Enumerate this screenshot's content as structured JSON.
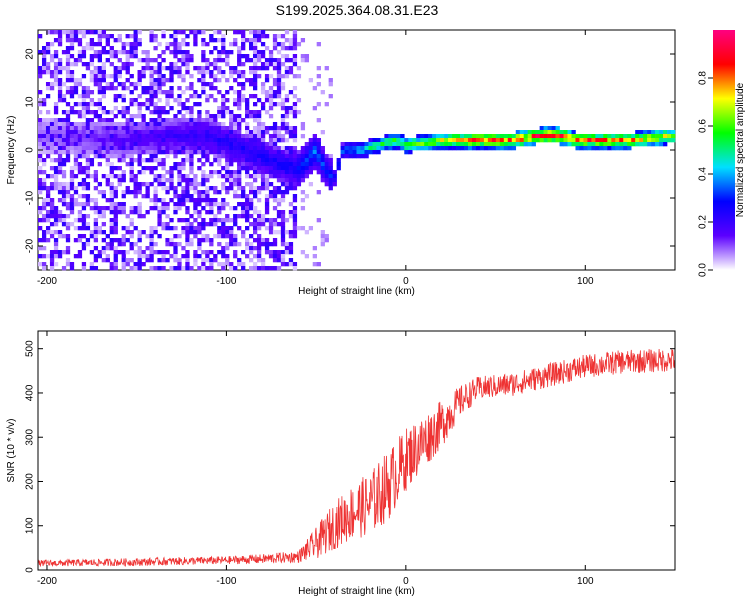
{
  "title": "S199.2025.364.08.31.E23",
  "chart_data": [
    {
      "type": "heatmap",
      "xlabel": "Height of straight line (km)",
      "ylabel": "Frequency (Hz)",
      "xlim": [
        -205,
        150
      ],
      "ylim": [
        -25,
        25
      ],
      "xticks": [
        -200,
        -100,
        0,
        100
      ],
      "yticks": [
        -20,
        -10,
        0,
        10,
        20
      ],
      "colorbar": {
        "label": "Normalized spectral amplitude",
        "range": [
          0,
          1
        ],
        "ticks": [
          "0.0",
          "0.2",
          "0.4",
          "0.6",
          "0.8"
        ],
        "tick_values": [
          0,
          0.2,
          0.4,
          0.6,
          0.8
        ],
        "colors": [
          "#ffffff",
          "#5b00ff",
          "#0000ff",
          "#00e0ff",
          "#00ff00",
          "#ffff00",
          "#ff0000",
          "#ff0080"
        ]
      },
      "noise_region": {
        "x_range": [
          -205,
          -60
        ],
        "y_range": [
          -25,
          25
        ],
        "level": 0.1
      },
      "ridge": {
        "x": [
          -200,
          -160,
          -130,
          -110,
          -90,
          -70,
          -60,
          -50,
          -45,
          -40,
          -35,
          -25,
          -15,
          -5,
          0,
          20,
          40,
          60,
          75,
          85,
          95,
          110,
          125,
          150
        ],
        "freq": [
          3,
          2,
          3,
          3,
          0,
          -3,
          -4,
          0,
          -4,
          -6,
          0,
          0,
          1,
          2,
          1,
          2,
          2,
          2,
          3,
          3,
          2,
          2,
          2,
          3
        ],
        "amp": [
          0.1,
          0.15,
          0.2,
          0.22,
          0.25,
          0.25,
          0.3,
          0.35,
          0.3,
          0.3,
          0.35,
          0.45,
          0.55,
          0.6,
          0.6,
          0.7,
          0.82,
          0.8,
          0.85,
          0.9,
          0.8,
          0.82,
          0.75,
          0.7
        ]
      }
    },
    {
      "type": "line",
      "xlabel": "Height of straight line (km)",
      "ylabel": "SNR (10 * v/v)",
      "xlim": [
        -205,
        150
      ],
      "ylim": [
        0,
        540
      ],
      "xticks": [
        -200,
        -100,
        0,
        100
      ],
      "yticks": [
        0,
        100,
        200,
        300,
        400,
        500
      ],
      "series": [
        {
          "name": "SNR",
          "color": "#ee3333",
          "x": [
            -205,
            -150,
            -100,
            -80,
            -60,
            -50,
            -40,
            -30,
            -20,
            -10,
            0,
            10,
            20,
            30,
            40,
            60,
            80,
            100,
            120,
            150
          ],
          "values": [
            15,
            18,
            22,
            25,
            30,
            60,
            100,
            130,
            150,
            190,
            250,
            290,
            330,
            380,
            410,
            420,
            440,
            460,
            470,
            475
          ],
          "noise": [
            8,
            10,
            10,
            12,
            15,
            40,
            60,
            70,
            80,
            90,
            80,
            70,
            60,
            40,
            30,
            30,
            30,
            30,
            30,
            30
          ]
        }
      ]
    }
  ]
}
